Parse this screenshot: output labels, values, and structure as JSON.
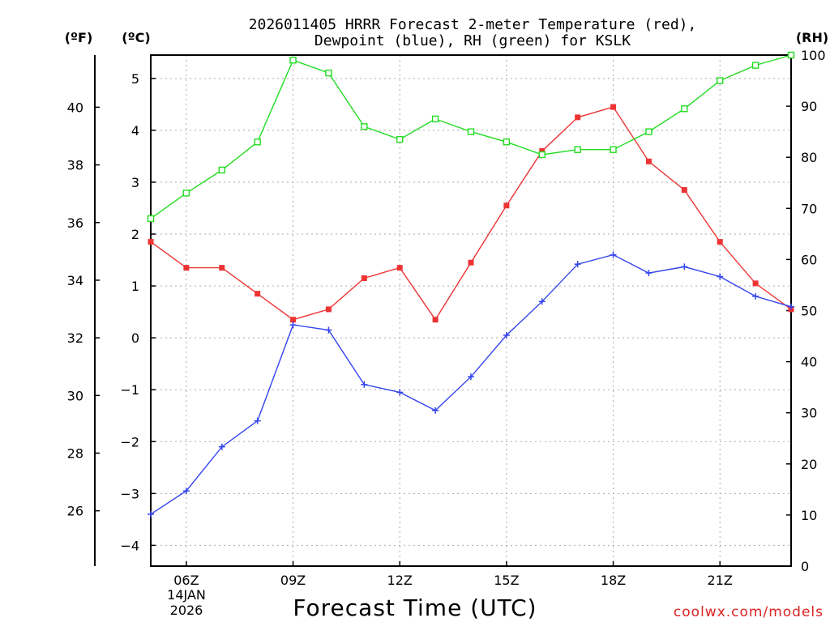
{
  "chart_data": {
    "type": "line",
    "title_line1": "2026011405 HRRR Forecast 2-meter Temperature (red),",
    "title_line2": "Dewpoint (blue), RH (green) for KSLK",
    "xlabel": "Forecast Time (UTC)",
    "credit": "coolwx.com/models",
    "unit_left_f": "(ºF)",
    "unit_left_c": "(ºC)",
    "unit_right": "(RH)",
    "x_hours": [
      5,
      6,
      7,
      8,
      9,
      10,
      11,
      12,
      13,
      14,
      15,
      16,
      17,
      18,
      19,
      20,
      21,
      22,
      23
    ],
    "x_range": [
      5,
      23
    ],
    "x_ticks": [
      {
        "hour": 6,
        "label": "06Z"
      },
      {
        "hour": 9,
        "label": "09Z"
      },
      {
        "hour": 12,
        "label": "12Z"
      },
      {
        "hour": 15,
        "label": "15Z"
      },
      {
        "hour": 18,
        "label": "18Z"
      },
      {
        "hour": 21,
        "label": "21Z"
      }
    ],
    "date_label_1": "14JAN",
    "date_label_2": "2026",
    "celsius_range": [
      -4.4,
      5.45
    ],
    "celsius_ticks": [
      "−4",
      "−3",
      "−2",
      "−1",
      "0",
      "1",
      "2",
      "3",
      "4",
      "5"
    ],
    "celsius_tick_values": [
      -4,
      -3,
      -2,
      -1,
      0,
      1,
      2,
      3,
      4,
      5
    ],
    "fahrenheit_ticks": [
      "26",
      "28",
      "30",
      "32",
      "34",
      "36",
      "38",
      "40"
    ],
    "fahrenheit_tick_values": [
      26,
      28,
      30,
      32,
      34,
      36,
      38,
      40
    ],
    "rh_range": [
      0,
      100
    ],
    "rh_ticks": [
      "0",
      "10",
      "20",
      "30",
      "40",
      "50",
      "60",
      "70",
      "80",
      "90",
      "100"
    ],
    "rh_tick_values": [
      0,
      10,
      20,
      30,
      40,
      50,
      60,
      70,
      80,
      90,
      100
    ],
    "series": [
      {
        "name": "2-meter Temperature",
        "axis": "celsius",
        "color": "#ee3333",
        "marker": "filled-square",
        "values": [
          1.85,
          1.35,
          1.35,
          0.85,
          0.35,
          0.55,
          1.15,
          1.35,
          0.35,
          1.45,
          2.55,
          3.6,
          4.25,
          4.45,
          3.4,
          2.85,
          1.85,
          1.05,
          0.55
        ]
      },
      {
        "name": "Dewpoint",
        "axis": "celsius",
        "color": "#3344ee",
        "marker": "plus",
        "values": [
          -3.4,
          -2.95,
          -2.1,
          -1.6,
          0.25,
          0.15,
          -0.9,
          -1.05,
          -1.4,
          -0.75,
          0.05,
          0.7,
          1.42,
          1.6,
          1.25,
          1.37,
          1.18,
          0.8,
          0.6
        ]
      },
      {
        "name": "RH",
        "axis": "rh",
        "color": "#22dd22",
        "marker": "hollow-square",
        "values": [
          68,
          73,
          77.5,
          83,
          99,
          96.5,
          86,
          83.5,
          87.5,
          85,
          83,
          80.5,
          81.5,
          81.5,
          85,
          89.5,
          95,
          98,
          100
        ]
      }
    ]
  }
}
